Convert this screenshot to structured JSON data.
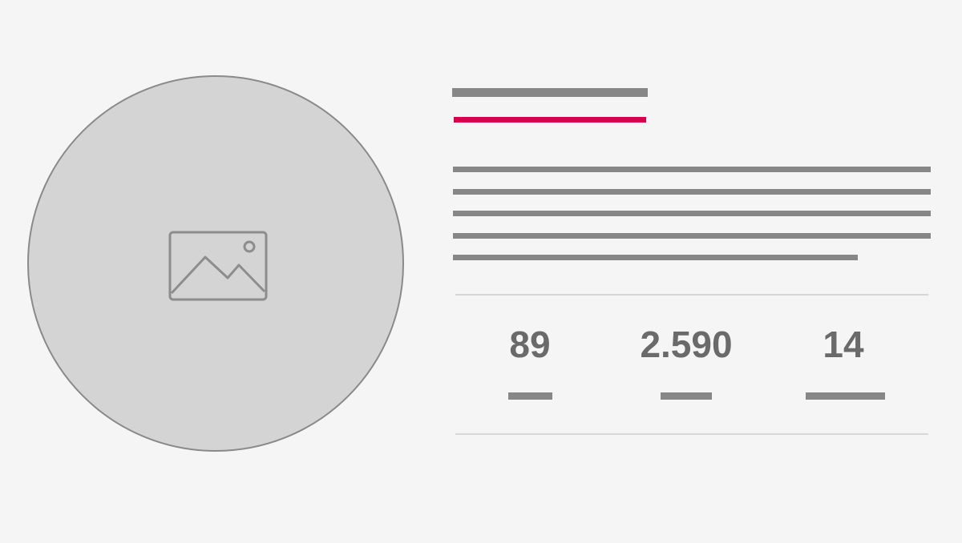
{
  "colors": {
    "background": "#f5f5f5",
    "placeholder_fill": "#d4d4d4",
    "line_gray": "#878787",
    "accent": "#d6004e",
    "stat_text": "#6a6a6a"
  },
  "media": {
    "icon": "image-icon"
  },
  "stats": [
    {
      "value": "89"
    },
    {
      "value": "2.590"
    },
    {
      "value": "14"
    }
  ]
}
